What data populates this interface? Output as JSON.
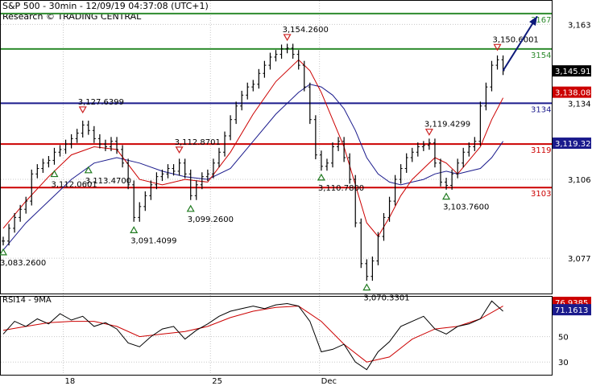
{
  "header": {
    "title": "S&P 500 - 30min - 12/09/19 04:37:08 (UTC+1)",
    "source": "Research © TRADING CENTRAL"
  },
  "colors": {
    "price": "#000000",
    "ma_fast": "#cc0000",
    "ma_slow": "#1a1a8c",
    "resistance_green": "#2e8b2e",
    "support_red": "#cc0000",
    "pivot_blue": "#1a1a8c",
    "arrow": "#0d1a7a"
  },
  "chart_data": [
    {
      "type": "line",
      "panel": "price",
      "ylim": [
        3064,
        3172
      ],
      "price_ticks": [
        "3,163",
        "3,134",
        "3,106",
        "3,077"
      ],
      "price_tick_values": [
        3163,
        3134,
        3106,
        3077
      ],
      "date_ticks": [
        {
          "label": "18",
          "x": 11
        },
        {
          "label": "25",
          "x": 38
        },
        {
          "label": "Dec",
          "x": 58
        }
      ],
      "levels": [
        {
          "label": "3167",
          "value": 3167,
          "color": "#2e8b2e"
        },
        {
          "label": "3154",
          "value": 3154,
          "color": "#2e8b2e"
        },
        {
          "label": "3134",
          "value": 3134,
          "color": "#1a1a8c"
        },
        {
          "label": "3119",
          "value": 3119,
          "color": "#cc0000"
        },
        {
          "label": "3103",
          "value": 3103,
          "color": "#cc0000"
        }
      ],
      "value_tags": [
        {
          "label": "3,145.91",
          "value": 3145.91,
          "bg": "#000000",
          "fg": "#ffffff"
        },
        {
          "label": "3,138.08",
          "value": 3138.08,
          "bg": "#cc0000",
          "fg": "#ffffff"
        },
        {
          "label": "3,119.32",
          "value": 3119.32,
          "bg": "#1a1a8c",
          "fg": "#ffffff"
        }
      ],
      "price_series": {
        "x": [
          0,
          1,
          2,
          3,
          4,
          5,
          6,
          7,
          8,
          9,
          10,
          11,
          12,
          13,
          14,
          15,
          16,
          17,
          18,
          19,
          20,
          21,
          22,
          23,
          24,
          25,
          26,
          27,
          28,
          29,
          30,
          31,
          32,
          33,
          34,
          35,
          36,
          37,
          38,
          39,
          40,
          41,
          42,
          43,
          44,
          45,
          46,
          47,
          48,
          49,
          50,
          51,
          52,
          53,
          54,
          55,
          56,
          57,
          58,
          59,
          60,
          61,
          62,
          63,
          64,
          65,
          66,
          67,
          68,
          69,
          70,
          71,
          72,
          73,
          74,
          75,
          76,
          77,
          78,
          79,
          80,
          81,
          82,
          83,
          84,
          85,
          86,
          87,
          88
        ],
        "close": [
          3083.3,
          3088,
          3092,
          3095,
          3098,
          3108,
          3110,
          3112,
          3113,
          3116,
          3117,
          3119,
          3121,
          3123,
          3126,
          3124,
          3121,
          3119,
          3118,
          3120,
          3117,
          3112,
          3104,
          3092,
          3096,
          3100,
          3104,
          3107,
          3108,
          3110,
          3109,
          3112,
          3108,
          3100,
          3104,
          3107,
          3108,
          3112,
          3116,
          3122,
          3128,
          3133,
          3137,
          3140,
          3141,
          3145,
          3148,
          3151,
          3152,
          3154,
          3154.3,
          3152,
          3148,
          3140,
          3128,
          3115,
          3110.8,
          3112,
          3118,
          3120,
          3114,
          3106,
          3090,
          3075,
          3070.3,
          3076,
          3085,
          3092,
          3098,
          3106,
          3110,
          3114,
          3116,
          3118,
          3118.5,
          3119.4,
          3112,
          3105,
          3103.8,
          3108,
          3112,
          3116,
          3118,
          3120,
          3133,
          3140,
          3148,
          3150,
          3146
        ]
      },
      "ma_fast": {
        "x": [
          0,
          4,
          8,
          12,
          16,
          20,
          24,
          28,
          32,
          36,
          40,
          44,
          48,
          52,
          54,
          56,
          58,
          60,
          62,
          64,
          66,
          68,
          70,
          72,
          74,
          76,
          78,
          80,
          82,
          84,
          86,
          88
        ],
        "values": [
          3088,
          3098,
          3107,
          3115,
          3118,
          3117,
          3106,
          3104,
          3106,
          3105,
          3116,
          3130,
          3142,
          3150,
          3146,
          3138,
          3128,
          3118,
          3104,
          3090,
          3085,
          3092,
          3100,
          3106,
          3110,
          3114,
          3112,
          3108,
          3113,
          3118,
          3128,
          3136
        ]
      },
      "ma_slow": {
        "x": [
          0,
          4,
          8,
          12,
          16,
          20,
          24,
          28,
          32,
          36,
          40,
          44,
          48,
          52,
          54,
          56,
          58,
          60,
          62,
          64,
          66,
          68,
          70,
          72,
          74,
          76,
          78,
          80,
          82,
          84,
          86,
          88
        ],
        "values": [
          3080,
          3090,
          3098,
          3106,
          3112,
          3114,
          3112,
          3109,
          3107,
          3106,
          3110,
          3120,
          3130,
          3138,
          3141,
          3140,
          3137,
          3132,
          3124,
          3114,
          3108,
          3105,
          3104,
          3105,
          3106,
          3108,
          3109,
          3108,
          3109,
          3110,
          3114,
          3120
        ]
      },
      "annotations": [
        {
          "label": "3,083.2600",
          "x": 0,
          "y": 3083.26,
          "pos": "below"
        },
        {
          "label": "3,112.0601",
          "x": 9,
          "y": 3112.06,
          "pos": "below"
        },
        {
          "label": "3,127.6399",
          "x": 14,
          "y": 3127.64,
          "pos": "above"
        },
        {
          "label": "3,113.4700",
          "x": 15,
          "y": 3113.47,
          "pos": "below"
        },
        {
          "label": "3,091.4099",
          "x": 23,
          "y": 3091.41,
          "pos": "below"
        },
        {
          "label": "3,112.8701",
          "x": 31,
          "y": 3112.87,
          "pos": "above"
        },
        {
          "label": "3,099.2600",
          "x": 33,
          "y": 3099.26,
          "pos": "below"
        },
        {
          "label": "3,154.2600",
          "x": 50,
          "y": 3154.26,
          "pos": "above"
        },
        {
          "label": "3,110.7800",
          "x": 56,
          "y": 3110.78,
          "pos": "below"
        },
        {
          "label": "3,070.3301",
          "x": 64,
          "y": 3070.33,
          "pos": "below"
        },
        {
          "label": "3,119.4299",
          "x": 75,
          "y": 3119.43,
          "pos": "above"
        },
        {
          "label": "3,103.7600",
          "x": 78,
          "y": 3103.76,
          "pos": "below"
        },
        {
          "label": "3,150.6001",
          "x": 87,
          "y": 3150.6,
          "pos": "above"
        }
      ],
      "projection": {
        "from_x": 88,
        "from_y": 3146,
        "to_x": 94,
        "to_y": 3166
      }
    },
    {
      "type": "line",
      "panel": "rsi",
      "title": "RSI14 - 9MA",
      "ylim": [
        20,
        82
      ],
      "ticks": [
        "50",
        "30"
      ],
      "tick_values": [
        50,
        30
      ],
      "value_tags": [
        {
          "label": "76.9385",
          "value": 76.9385,
          "bg": "#cc0000",
          "fg": "#ffffff"
        },
        {
          "label": "71.1613",
          "value": 71.1613,
          "bg": "#1a1a8c",
          "fg": "#ffffff"
        }
      ],
      "rsi": {
        "x": [
          0,
          2,
          4,
          6,
          8,
          10,
          12,
          14,
          16,
          18,
          20,
          22,
          24,
          26,
          28,
          30,
          32,
          34,
          36,
          38,
          40,
          42,
          44,
          46,
          48,
          50,
          52,
          54,
          56,
          58,
          60,
          62,
          64,
          66,
          68,
          70,
          72,
          74,
          76,
          78,
          80,
          82,
          84,
          86,
          88
        ],
        "values": [
          52,
          62,
          58,
          64,
          60,
          68,
          63,
          66,
          58,
          61,
          56,
          45,
          42,
          50,
          56,
          58,
          48,
          55,
          60,
          66,
          70,
          72,
          74,
          72,
          75,
          76,
          74,
          62,
          38,
          40,
          44,
          30,
          24,
          38,
          46,
          58,
          62,
          66,
          56,
          52,
          58,
          60,
          64,
          78,
          70
        ]
      },
      "rsi_ma": {
        "x": [
          0,
          4,
          8,
          12,
          16,
          20,
          24,
          28,
          32,
          36,
          40,
          44,
          48,
          52,
          56,
          60,
          64,
          68,
          72,
          76,
          80,
          84,
          88
        ],
        "values": [
          55,
          58,
          61,
          62,
          62,
          58,
          50,
          52,
          54,
          58,
          65,
          70,
          73,
          74,
          62,
          44,
          30,
          34,
          48,
          56,
          58,
          64,
          74
        ]
      }
    }
  ]
}
